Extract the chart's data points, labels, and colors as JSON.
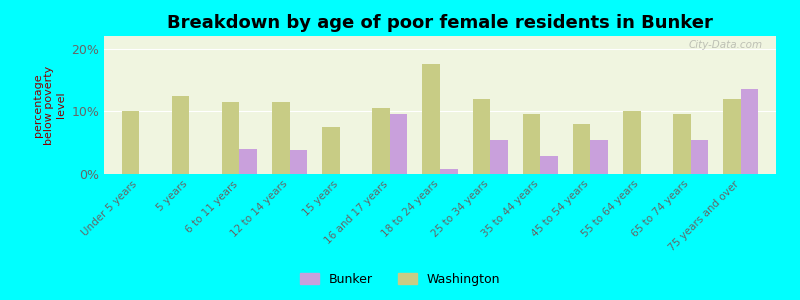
{
  "title": "Breakdown by age of poor female residents in Bunker",
  "ylabel": "percentage\nbelow poverty\nlevel",
  "categories": [
    "Under 5 years",
    "5 years",
    "6 to 11 years",
    "12 to 14 years",
    "15 years",
    "16 and 17 years",
    "18 to 24 years",
    "25 to 34 years",
    "35 to 44 years",
    "45 to 54 years",
    "55 to 64 years",
    "65 to 74 years",
    "75 years and over"
  ],
  "bunker_values": [
    null,
    null,
    4.0,
    3.8,
    null,
    9.5,
    0.8,
    5.5,
    2.8,
    5.5,
    null,
    5.5,
    13.5
  ],
  "washington_values": [
    10.0,
    12.5,
    11.5,
    11.5,
    7.5,
    10.5,
    17.5,
    12.0,
    9.5,
    8.0,
    10.0,
    9.5,
    12.0
  ],
  "bunker_color": "#c9a0dc",
  "washington_color": "#c8cc85",
  "background_color": "#00ffff",
  "plot_bg_color": "#f0f5e0",
  "ylim": [
    0,
    22
  ],
  "yticks": [
    0,
    10,
    20
  ],
  "ytick_labels": [
    "0%",
    "10%",
    "20%"
  ],
  "bar_width": 0.35,
  "title_fontsize": 13,
  "legend_labels": [
    "Bunker",
    "Washington"
  ],
  "watermark": "City-Data.com"
}
